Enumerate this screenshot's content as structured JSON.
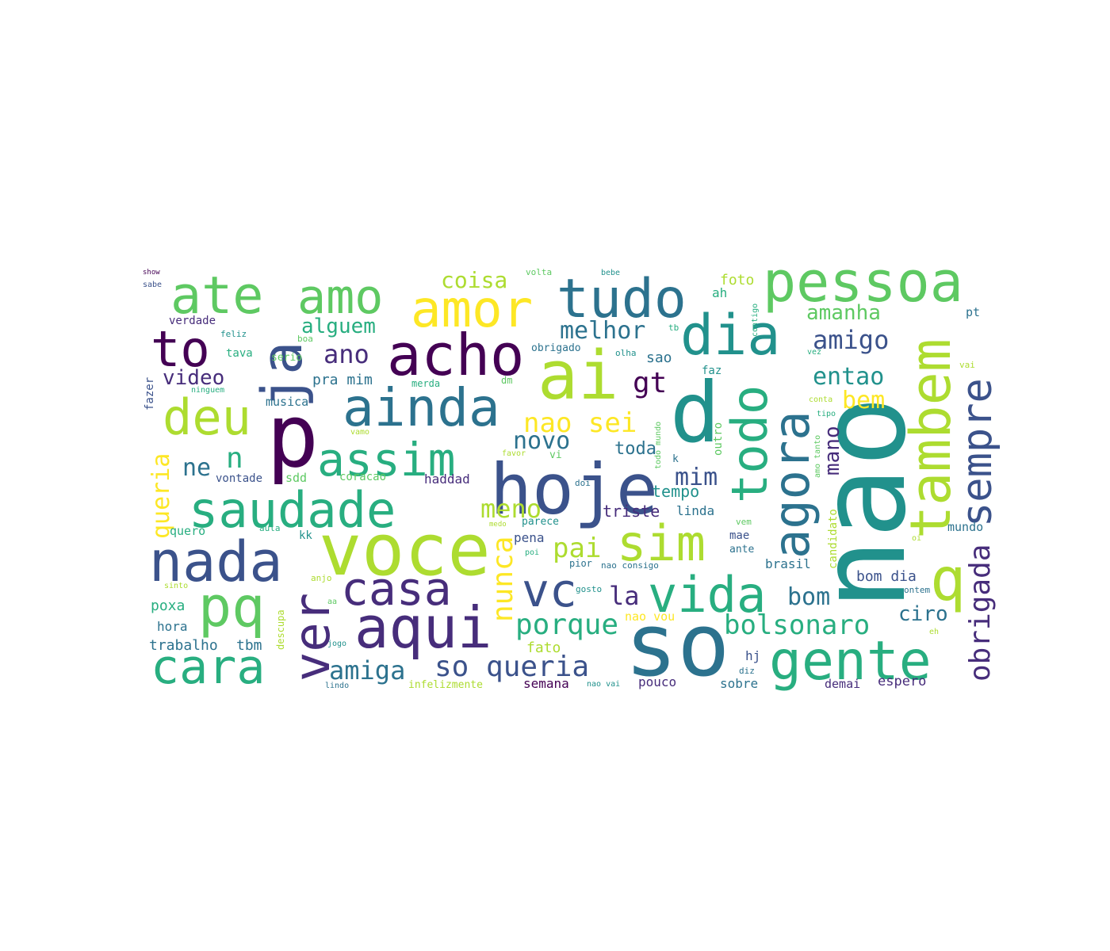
{
  "palette": {
    "background": "#ffffff",
    "colors": [
      "#440154",
      "#472d7b",
      "#3b528b",
      "#2c728e",
      "#21918c",
      "#28ae80",
      "#5ec962",
      "#addc30",
      "#fde725"
    ]
  },
  "words": [
    {
      "text": "nao",
      "c": 4
    },
    {
      "text": "so",
      "c": 3
    },
    {
      "text": "ai",
      "c": 7
    },
    {
      "text": "voce",
      "c": 7
    },
    {
      "text": "hoje",
      "c": 2
    },
    {
      "text": "p",
      "c": 0
    },
    {
      "text": "d",
      "c": 4
    },
    {
      "text": "ja",
      "c": 2
    },
    {
      "text": "acho",
      "c": 0
    },
    {
      "text": "tudo",
      "c": 3
    },
    {
      "text": "pessoa",
      "c": 6
    },
    {
      "text": "amor",
      "c": 8
    },
    {
      "text": "amo",
      "c": 6
    },
    {
      "text": "ate",
      "c": 6
    },
    {
      "text": "dia",
      "c": 4
    },
    {
      "text": "todo",
      "c": 5
    },
    {
      "text": "agora",
      "c": 3
    },
    {
      "text": "tambem",
      "c": 7
    },
    {
      "text": "sempre",
      "c": 2
    },
    {
      "text": "q",
      "c": 7
    },
    {
      "text": "gente",
      "c": 5
    },
    {
      "text": "vida",
      "c": 5
    },
    {
      "text": "sim",
      "c": 7
    },
    {
      "text": "vc",
      "c": 2
    },
    {
      "text": "aqui",
      "c": 1
    },
    {
      "text": "casa",
      "c": 1
    },
    {
      "text": "pq",
      "c": 6
    },
    {
      "text": "ver",
      "c": 1
    },
    {
      "text": "cara",
      "c": 5
    },
    {
      "text": "nada",
      "c": 2
    },
    {
      "text": "saudade",
      "c": 5
    },
    {
      "text": "assim",
      "c": 5
    },
    {
      "text": "ainda",
      "c": 3
    },
    {
      "text": "deu",
      "c": 7
    },
    {
      "text": "to",
      "c": 0
    },
    {
      "text": "obrigada",
      "c": 1
    },
    {
      "text": "bolsonaro",
      "c": 5
    },
    {
      "text": "porque",
      "c": 5
    },
    {
      "text": "so queria",
      "c": 2
    },
    {
      "text": "amiga",
      "c": 3
    },
    {
      "text": "nunca",
      "c": 8
    },
    {
      "text": "pai",
      "c": 7
    },
    {
      "text": "meno",
      "c": 7
    },
    {
      "text": "mim",
      "c": 2
    },
    {
      "text": "nao sei",
      "c": 8
    },
    {
      "text": "novo",
      "c": 3
    },
    {
      "text": "gt",
      "c": 0
    },
    {
      "text": "melhor",
      "c": 3
    },
    {
      "text": "coisa",
      "c": 7
    },
    {
      "text": "alguem",
      "c": 5
    },
    {
      "text": "ano",
      "c": 1
    },
    {
      "text": "video",
      "c": 1
    },
    {
      "text": "ne",
      "c": 3
    },
    {
      "text": "n",
      "c": 5
    },
    {
      "text": "queria",
      "c": 8
    },
    {
      "text": "amigo",
      "c": 2
    },
    {
      "text": "entao",
      "c": 4
    },
    {
      "text": "bem",
      "c": 8
    },
    {
      "text": "amanha",
      "c": 6
    },
    {
      "text": "mano",
      "c": 1
    },
    {
      "text": "bom",
      "c": 3
    },
    {
      "text": "ciro",
      "c": 3
    },
    {
      "text": "la",
      "c": 1
    },
    {
      "text": "triste",
      "c": 1
    },
    {
      "text": "tempo",
      "c": 4
    },
    {
      "text": "toda",
      "c": 3
    },
    {
      "text": "haddad",
      "c": 1
    },
    {
      "text": "musica",
      "c": 3
    },
    {
      "text": "pra mim",
      "c": 3
    },
    {
      "text": "verdade",
      "c": 1
    },
    {
      "text": "feliz",
      "c": 4
    },
    {
      "text": "tava",
      "c": 5
    },
    {
      "text": "serio",
      "c": 6
    },
    {
      "text": "boa",
      "c": 6
    },
    {
      "text": "obrigado",
      "c": 3
    },
    {
      "text": "olha",
      "c": 4
    },
    {
      "text": "tb",
      "c": 5
    },
    {
      "text": "sao",
      "c": 3
    },
    {
      "text": "faz",
      "c": 4
    },
    {
      "text": "foto",
      "c": 7
    },
    {
      "text": "ah",
      "c": 5
    },
    {
      "text": "volta",
      "c": 6
    },
    {
      "text": "bebe",
      "c": 4
    },
    {
      "text": "show",
      "c": 0
    },
    {
      "text": "sabe",
      "c": 2
    },
    {
      "text": "fazer",
      "c": 2
    },
    {
      "text": "ninguem",
      "c": 5
    },
    {
      "text": "dm",
      "c": 6
    },
    {
      "text": "merda",
      "c": 5
    },
    {
      "text": "vontade",
      "c": 2
    },
    {
      "text": "sdd",
      "c": 6
    },
    {
      "text": "coracao",
      "c": 6
    },
    {
      "text": "quero",
      "c": 5
    },
    {
      "text": "aula",
      "c": 5
    },
    {
      "text": "kk",
      "c": 4
    },
    {
      "text": "poxa",
      "c": 5
    },
    {
      "text": "hora",
      "c": 3
    },
    {
      "text": "trabalho",
      "c": 3
    },
    {
      "text": "tbm",
      "c": 3
    },
    {
      "text": "descupa",
      "c": 7
    },
    {
      "text": "jogo",
      "c": 4
    },
    {
      "text": "lindo",
      "c": 3
    },
    {
      "text": "infelizmente",
      "c": 7
    },
    {
      "text": "semana",
      "c": 0
    },
    {
      "text": "nao vai",
      "c": 4
    },
    {
      "text": "pouco",
      "c": 1
    },
    {
      "text": "sobre",
      "c": 3
    },
    {
      "text": "demai",
      "c": 1
    },
    {
      "text": "espero",
      "c": 1
    },
    {
      "text": "hj",
      "c": 2
    },
    {
      "text": "diz",
      "c": 3
    },
    {
      "text": "eh",
      "c": 7
    },
    {
      "text": "ontem",
      "c": 3
    },
    {
      "text": "bom dia",
      "c": 2
    },
    {
      "text": "mundo",
      "c": 3
    },
    {
      "text": "brasil",
      "c": 3
    },
    {
      "text": "candidato",
      "c": 7
    },
    {
      "text": "oi",
      "c": 7
    },
    {
      "text": "nao consigo",
      "c": 3
    },
    {
      "text": "pior",
      "c": 3
    },
    {
      "text": "mae",
      "c": 2
    },
    {
      "text": "ante",
      "c": 3
    },
    {
      "text": "vem",
      "c": 6
    },
    {
      "text": "linda",
      "c": 3
    },
    {
      "text": "parece",
      "c": 4
    },
    {
      "text": "pena",
      "c": 2
    },
    {
      "text": "poi",
      "c": 5
    },
    {
      "text": "medo",
      "c": 7
    },
    {
      "text": "gosto",
      "c": 4
    },
    {
      "text": "anjo",
      "c": 7
    },
    {
      "text": "aa",
      "c": 6
    },
    {
      "text": "sinto",
      "c": 7
    },
    {
      "text": "nao vou",
      "c": 8
    },
    {
      "text": "fato",
      "c": 7
    },
    {
      "text": "doi",
      "c": 3
    },
    {
      "text": "vi",
      "c": 6
    },
    {
      "text": "favor",
      "c": 7
    },
    {
      "text": "k",
      "c": 3
    },
    {
      "text": "todo mundo",
      "c": 6
    },
    {
      "text": "outro",
      "c": 6
    },
    {
      "text": "tipo",
      "c": 5
    },
    {
      "text": "amo tanto",
      "c": 6
    },
    {
      "text": "conta",
      "c": 7
    },
    {
      "text": "vai",
      "c": 7
    },
    {
      "text": "vez",
      "c": 5
    },
    {
      "text": "pt",
      "c": 3
    },
    {
      "text": "contigo",
      "c": 5
    },
    {
      "text": "vamo",
      "c": 7
    }
  ]
}
